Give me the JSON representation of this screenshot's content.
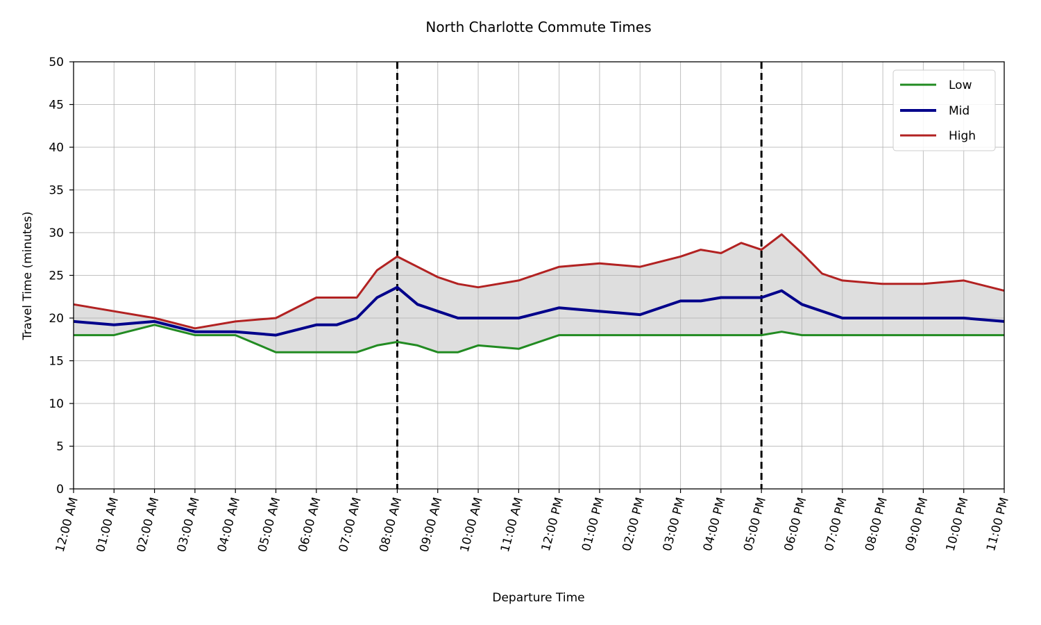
{
  "chart_data": {
    "type": "line",
    "title": "North Charlotte Commute Times",
    "xlabel": "Departure Time",
    "ylabel": "Travel Time (minutes)",
    "ylim": [
      0,
      50
    ],
    "yticks": [
      0,
      5,
      10,
      15,
      20,
      25,
      30,
      35,
      40,
      45,
      50
    ],
    "xticks": [
      "12:00 AM",
      "01:00 AM",
      "02:00 AM",
      "03:00 AM",
      "04:00 AM",
      "05:00 AM",
      "06:00 AM",
      "07:00 AM",
      "08:00 AM",
      "09:00 AM",
      "10:00 AM",
      "11:00 AM",
      "12:00 PM",
      "01:00 PM",
      "02:00 PM",
      "03:00 PM",
      "04:00 PM",
      "05:00 PM",
      "06:00 PM",
      "07:00 PM",
      "08:00 PM",
      "09:00 PM",
      "10:00 PM",
      "11:00 PM"
    ],
    "grid": true,
    "legend_position": "top-right",
    "shaded_band": {
      "between": [
        "Low",
        "High"
      ],
      "color": "#dedede"
    },
    "vertical_markers": [
      {
        "x": "08:00 AM",
        "style": "dashed",
        "color": "#000000"
      },
      {
        "x": "05:00 PM",
        "style": "dashed",
        "color": "#000000"
      }
    ],
    "series": [
      {
        "name": "Low",
        "color": "#228b22",
        "x": [
          "12:00 AM",
          "01:00 AM",
          "02:00 AM",
          "03:00 AM",
          "04:00 AM",
          "05:00 AM",
          "06:00 AM",
          "06:30 AM",
          "07:00 AM",
          "07:30 AM",
          "08:00 AM",
          "08:30 AM",
          "09:00 AM",
          "09:30 AM",
          "10:00 AM",
          "11:00 AM",
          "12:00 PM",
          "01:00 PM",
          "02:00 PM",
          "03:00 PM",
          "04:00 PM",
          "05:00 PM",
          "05:30 PM",
          "06:00 PM",
          "07:00 PM",
          "08:00 PM",
          "09:00 PM",
          "10:00 PM",
          "11:00 PM"
        ],
        "values": [
          18,
          18,
          19.2,
          18,
          18,
          16,
          16,
          16,
          16,
          16.8,
          17.2,
          16.8,
          16,
          16,
          16.8,
          16.4,
          18,
          18,
          18,
          18,
          18,
          18,
          18.4,
          18,
          18,
          18,
          18,
          18,
          18
        ]
      },
      {
        "name": "Mid",
        "color": "#00008b",
        "x": [
          "12:00 AM",
          "01:00 AM",
          "02:00 AM",
          "03:00 AM",
          "04:00 AM",
          "05:00 AM",
          "06:00 AM",
          "06:30 AM",
          "07:00 AM",
          "07:30 AM",
          "08:00 AM",
          "08:30 AM",
          "09:00 AM",
          "09:30 AM",
          "10:00 AM",
          "11:00 AM",
          "12:00 PM",
          "01:00 PM",
          "02:00 PM",
          "03:00 PM",
          "03:30 PM",
          "04:00 PM",
          "05:00 PM",
          "05:30 PM",
          "06:00 PM",
          "07:00 PM",
          "08:00 PM",
          "09:00 PM",
          "10:00 PM",
          "11:00 PM"
        ],
        "values": [
          19.6,
          19.2,
          19.6,
          18.4,
          18.4,
          18,
          19.2,
          19.2,
          20,
          22.4,
          23.6,
          21.6,
          20.8,
          20,
          20,
          20,
          21.2,
          20.8,
          20.4,
          22,
          22,
          22.4,
          22.4,
          23.2,
          21.6,
          20,
          20,
          20,
          20,
          19.6
        ]
      },
      {
        "name": "High",
        "color": "#b22222",
        "x": [
          "12:00 AM",
          "01:00 AM",
          "02:00 AM",
          "03:00 AM",
          "04:00 AM",
          "05:00 AM",
          "06:00 AM",
          "06:30 AM",
          "07:00 AM",
          "07:30 AM",
          "08:00 AM",
          "08:30 AM",
          "09:00 AM",
          "09:30 AM",
          "10:00 AM",
          "11:00 AM",
          "12:00 PM",
          "01:00 PM",
          "02:00 PM",
          "03:00 PM",
          "03:30 PM",
          "04:00 PM",
          "04:30 PM",
          "05:00 PM",
          "05:30 PM",
          "06:00 PM",
          "06:30 PM",
          "07:00 PM",
          "08:00 PM",
          "09:00 PM",
          "10:00 PM",
          "11:00 PM"
        ],
        "values": [
          21.6,
          20.8,
          20,
          18.8,
          19.6,
          20,
          22.4,
          22.4,
          22.4,
          25.6,
          27.2,
          26,
          24.8,
          24,
          23.6,
          24.4,
          26,
          26.4,
          26,
          27.2,
          28,
          27.6,
          28.8,
          28,
          29.8,
          27.6,
          25.2,
          24.4,
          24,
          24,
          24.4,
          23.2
        ]
      }
    ]
  }
}
